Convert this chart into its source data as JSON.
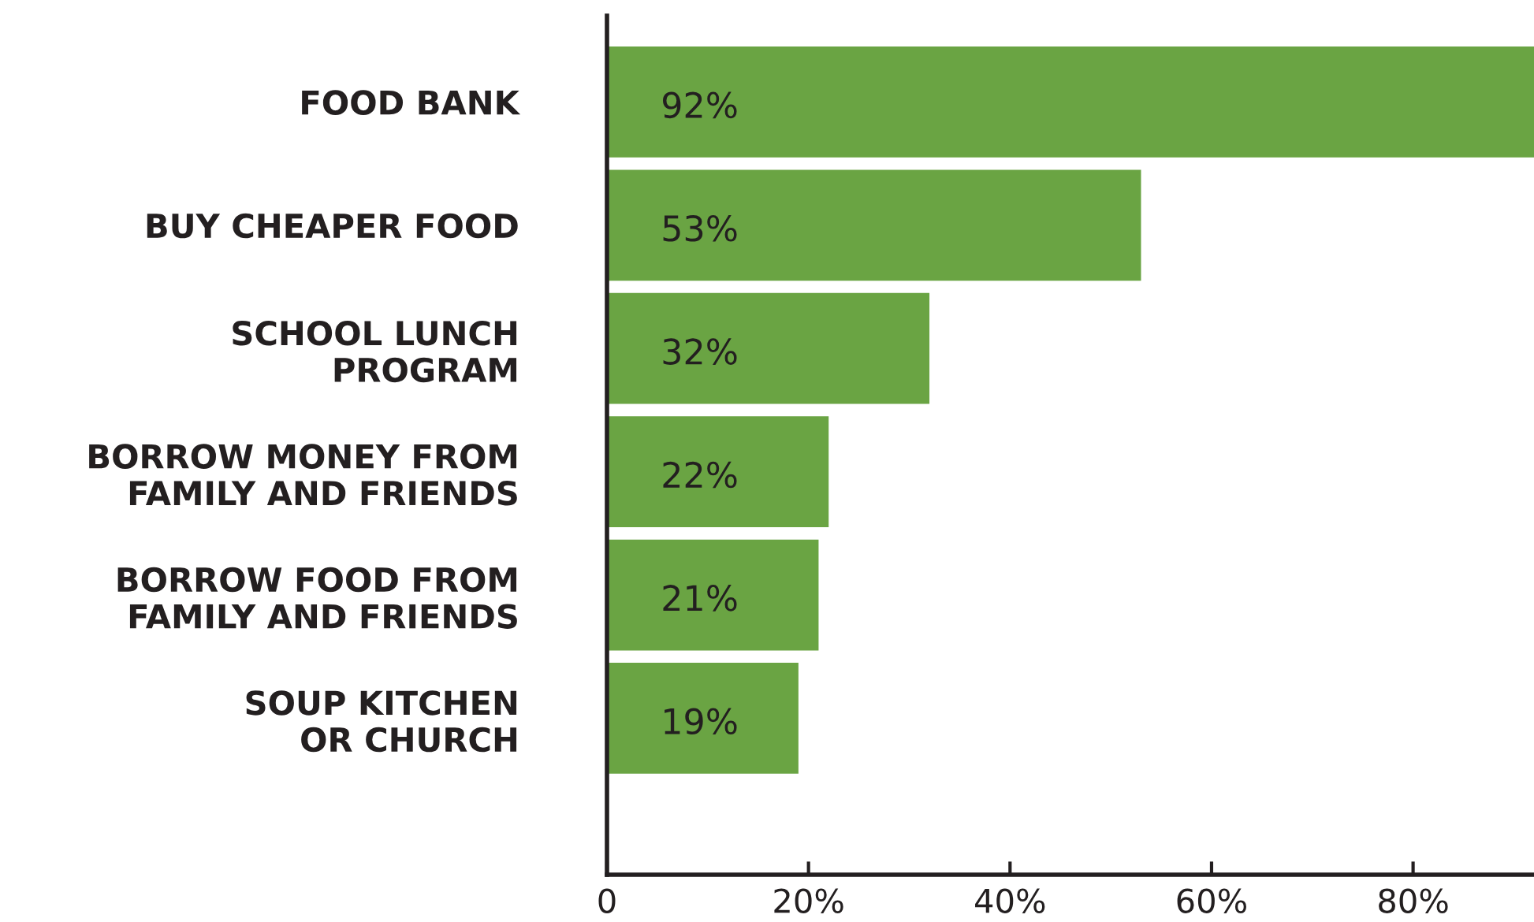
{
  "chart_data": {
    "type": "bar",
    "orientation": "horizontal",
    "categories": [
      "FOOD BANK",
      "BUY CHEAPER FOOD",
      "SCHOOL LUNCH\nPROGRAM",
      "BORROW MONEY FROM\nFAMILY AND FRIENDS",
      "BORROW FOOD FROM\nFAMILY AND FRIENDS",
      "SOUP KITCHEN\nOR CHURCH"
    ],
    "values": [
      92,
      53,
      32,
      22,
      21,
      19
    ],
    "value_labels": [
      "92%",
      "53%",
      "32%",
      "22%",
      "21%",
      "19%"
    ],
    "color": "#6aa443",
    "xlim": [
      0,
      92
    ],
    "xticks": [
      0,
      {
        "value": 20,
        "label": "20%"
      },
      {
        "value": 40,
        "label": "40%"
      },
      {
        "value": 60,
        "label": "60%"
      },
      {
        "value": 80,
        "label": "80%"
      }
    ],
    "grid": false,
    "legend": false
  }
}
